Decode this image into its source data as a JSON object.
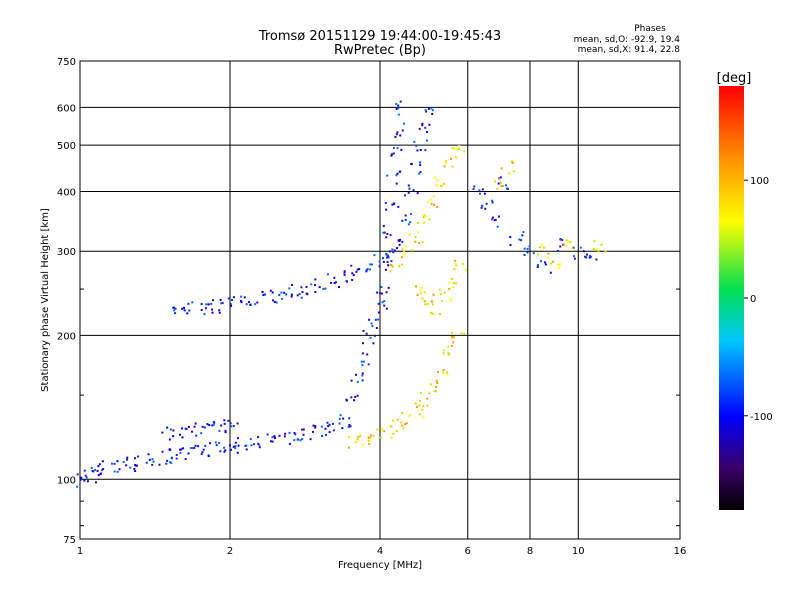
{
  "chart_data": {
    "type": "scatter",
    "title": "Tromsø 20151129 19:44:00-19:45:43",
    "subtitle": "RwPretec (Bp)",
    "xlabel": "Frequency [MHz]",
    "ylabel": "Stationary phase Virtual Height [km]",
    "x_scale": "log",
    "y_scale": "log",
    "xlim": [
      1,
      16
    ],
    "ylim": [
      75,
      750
    ],
    "x_ticks": [
      1,
      2,
      4,
      6,
      8,
      10,
      16
    ],
    "y_ticks": [
      75,
      100,
      200,
      300,
      400,
      500,
      600,
      750
    ],
    "grid": true,
    "stats": {
      "heading": "Phases",
      "line_o": "mean, sd,O: -92.9, 19.4",
      "line_x": "mean, sd,X:  91.4, 22.8"
    },
    "colorbar": {
      "label": "[deg]",
      "range": [
        -180,
        180
      ],
      "ticks": [
        100,
        0,
        -100
      ]
    },
    "o_mode_points": [
      [
        1.0,
        100
      ],
      [
        1.05,
        102
      ],
      [
        1.08,
        105
      ],
      [
        1.12,
        106
      ],
      [
        1.18,
        107
      ],
      [
        1.25,
        108
      ],
      [
        1.32,
        109
      ],
      [
        1.4,
        110
      ],
      [
        1.48,
        112
      ],
      [
        1.55,
        113
      ],
      [
        1.62,
        114
      ],
      [
        1.7,
        115
      ],
      [
        1.8,
        116
      ],
      [
        1.9,
        117
      ],
      [
        2.0,
        118
      ],
      [
        2.1,
        119
      ],
      [
        2.2,
        120
      ],
      [
        2.35,
        121
      ],
      [
        2.5,
        122
      ],
      [
        2.65,
        123
      ],
      [
        2.8,
        125
      ],
      [
        2.95,
        126
      ],
      [
        3.1,
        128
      ],
      [
        3.25,
        130
      ],
      [
        3.4,
        133
      ],
      [
        1.5,
        125
      ],
      [
        1.6,
        127
      ],
      [
        1.7,
        128
      ],
      [
        1.8,
        129
      ],
      [
        1.9,
        130
      ],
      [
        2.0,
        130
      ],
      [
        1.55,
        230
      ],
      [
        1.65,
        228
      ],
      [
        1.75,
        229
      ],
      [
        1.85,
        231
      ],
      [
        1.95,
        233
      ],
      [
        2.05,
        236
      ],
      [
        2.15,
        238
      ],
      [
        2.25,
        240
      ],
      [
        2.4,
        242
      ],
      [
        2.55,
        245
      ],
      [
        2.7,
        248
      ],
      [
        2.85,
        252
      ],
      [
        3.0,
        256
      ],
      [
        3.2,
        262
      ],
      [
        3.4,
        268
      ],
      [
        3.6,
        275
      ],
      [
        3.8,
        282
      ],
      [
        4.0,
        290
      ],
      [
        4.2,
        300
      ],
      [
        4.4,
        310
      ],
      [
        3.5,
        150
      ],
      [
        3.6,
        165
      ],
      [
        3.7,
        180
      ],
      [
        3.8,
        200
      ],
      [
        3.9,
        215
      ],
      [
        4.0,
        230
      ],
      [
        4.05,
        250
      ],
      [
        4.1,
        280
      ],
      [
        4.15,
        330
      ],
      [
        4.2,
        380
      ],
      [
        4.25,
        430
      ],
      [
        4.3,
        480
      ],
      [
        4.35,
        540
      ],
      [
        4.4,
        600
      ],
      [
        4.5,
        350
      ],
      [
        4.6,
        400
      ],
      [
        4.7,
        450
      ],
      [
        4.8,
        500
      ],
      [
        4.9,
        550
      ],
      [
        5.0,
        600
      ],
      [
        6.3,
        400
      ],
      [
        6.5,
        380
      ],
      [
        6.7,
        350
      ],
      [
        7.0,
        420
      ],
      [
        7.5,
        320
      ],
      [
        8.0,
        300
      ],
      [
        8.5,
        280
      ],
      [
        9.0,
        310
      ],
      [
        10.0,
        300
      ],
      [
        10.5,
        290
      ]
    ],
    "x_mode_points": [
      [
        3.5,
        120
      ],
      [
        3.7,
        122
      ],
      [
        3.9,
        124
      ],
      [
        4.1,
        126
      ],
      [
        4.3,
        130
      ],
      [
        4.5,
        135
      ],
      [
        4.7,
        140
      ],
      [
        4.9,
        148
      ],
      [
        5.1,
        158
      ],
      [
        5.3,
        170
      ],
      [
        5.5,
        185
      ],
      [
        5.7,
        200
      ],
      [
        4.3,
        280
      ],
      [
        4.5,
        300
      ],
      [
        4.7,
        320
      ],
      [
        4.9,
        350
      ],
      [
        5.1,
        380
      ],
      [
        5.3,
        420
      ],
      [
        5.5,
        460
      ],
      [
        5.7,
        500
      ],
      [
        4.8,
        250
      ],
      [
        5.0,
        240
      ],
      [
        5.2,
        230
      ],
      [
        5.4,
        245
      ],
      [
        5.6,
        260
      ],
      [
        5.8,
        280
      ],
      [
        6.8,
        420
      ],
      [
        7.2,
        450
      ],
      [
        8.5,
        300
      ],
      [
        9.0,
        280
      ],
      [
        9.5,
        310
      ],
      [
        11.0,
        310
      ]
    ]
  }
}
